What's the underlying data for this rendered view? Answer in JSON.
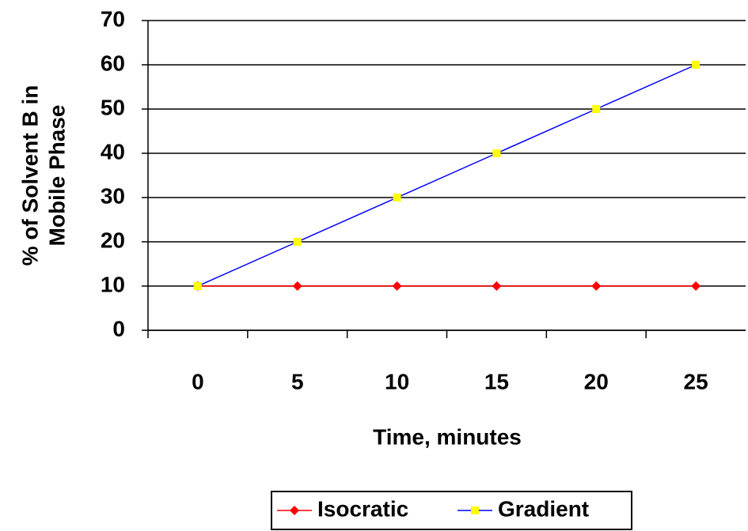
{
  "chart_data": {
    "type": "line",
    "categories": [
      "0",
      "5",
      "10",
      "15",
      "20",
      "25"
    ],
    "series": [
      {
        "name": "Isocratic",
        "color": "#ff0000",
        "marker": "diamond",
        "marker_color": "#ff0000",
        "values": [
          10,
          10,
          10,
          10,
          10,
          10
        ]
      },
      {
        "name": "Gradient",
        "color": "#0000ff",
        "marker": "square",
        "marker_color": "#ffff00",
        "values": [
          10,
          20,
          30,
          40,
          50,
          60
        ]
      }
    ],
    "xlabel": "Time, minutes",
    "ylabel": [
      "% of Solvent B in",
      "Mobile Phase"
    ],
    "ylim": [
      0,
      70
    ],
    "yticks": [
      0,
      10,
      20,
      30,
      40,
      50,
      60,
      70
    ],
    "grid": true,
    "legend": "bottom"
  }
}
